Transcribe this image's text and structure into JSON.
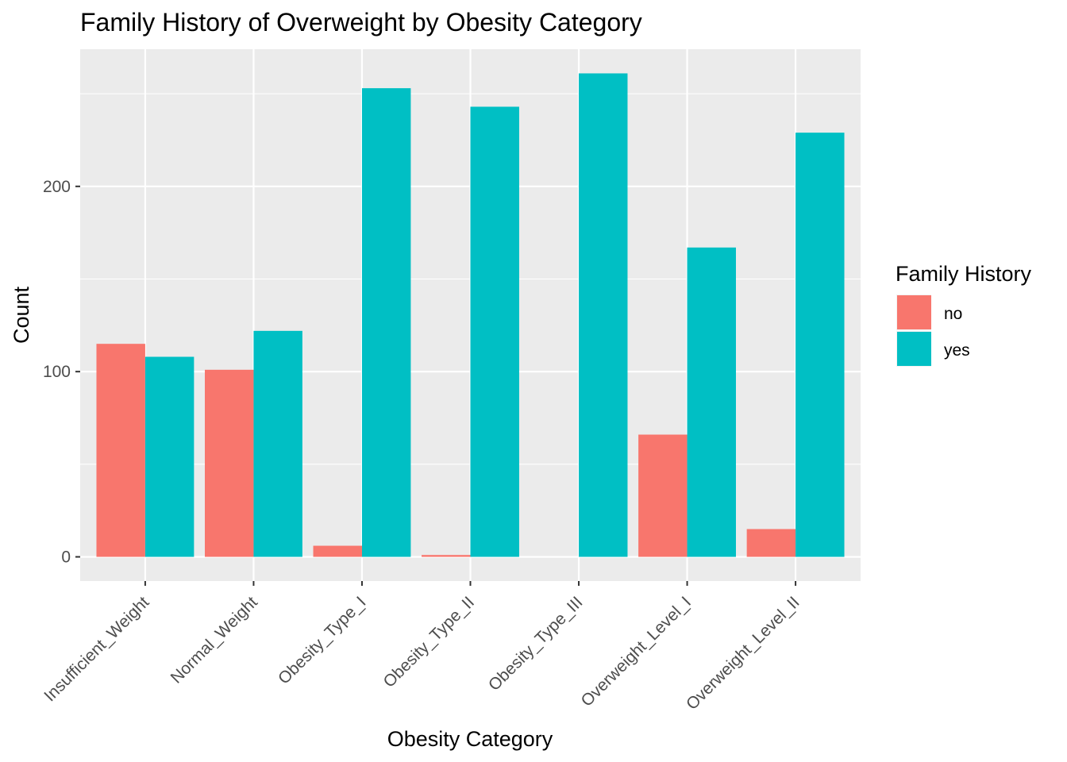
{
  "chart_data": {
    "type": "bar",
    "title": "Family History of Overweight by Obesity Category",
    "xlabel": "Obesity Category",
    "ylabel": "Count",
    "categories": [
      "Insufficient_Weight",
      "Normal_Weight",
      "Obesity_Type_I",
      "Obesity_Type_II",
      "Obesity_Type_III",
      "Overweight_Level_I",
      "Overweight_Level_II"
    ],
    "series": [
      {
        "name": "no",
        "color": "#F8766D",
        "values": [
          115,
          101,
          6,
          1,
          0,
          66,
          15
        ]
      },
      {
        "name": "yes",
        "color": "#00BFC4",
        "values": [
          108,
          122,
          253,
          243,
          261,
          167,
          229
        ]
      }
    ],
    "ylim": [
      -13.05,
      274.05
    ],
    "y_ticks": [
      0,
      100,
      200
    ],
    "y_tick_labels": [
      "0",
      "100",
      "200"
    ],
    "grid": true,
    "legend": {
      "title": "Family History",
      "position": "right"
    },
    "colors": {
      "panel_background": "#EBEBEB",
      "grid": "#FFFFFF"
    }
  }
}
